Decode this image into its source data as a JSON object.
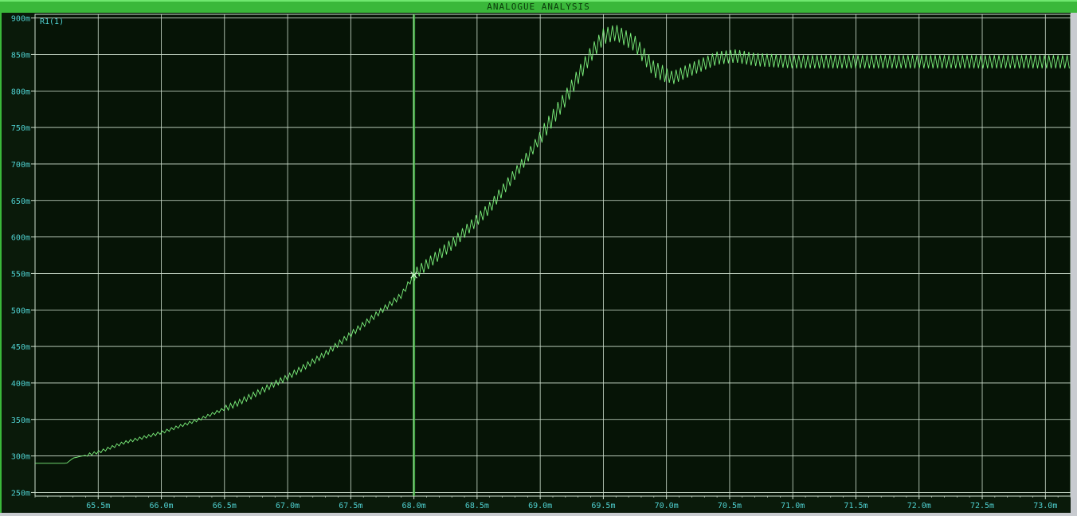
{
  "window": {
    "title": "ANALOGUE ANALYSIS"
  },
  "chart_data": {
    "type": "line",
    "title": "ANALOGUE ANALYSIS",
    "xlabel": "",
    "ylabel": "",
    "trace_label": "R1(1)",
    "x_ticks": [
      "65.5m",
      "66.0m",
      "66.5m",
      "67.0m",
      "67.5m",
      "68.0m",
      "68.5m",
      "69.0m",
      "69.5m",
      "70.0m",
      "70.5m",
      "71.0m",
      "71.5m",
      "72.0m",
      "72.5m",
      "73.0m"
    ],
    "y_ticks": [
      "900m",
      "850m",
      "800m",
      "750m",
      "700m",
      "650m",
      "600m",
      "550m",
      "500m",
      "450m",
      "400m",
      "350m",
      "300m",
      "250m"
    ],
    "xlim_ms": [
      65.0,
      73.2
    ],
    "ylim_mV": [
      245,
      905
    ],
    "cursor_x_ms": 68.0,
    "series": [
      {
        "color": "#7cf07c",
        "envelope_points_ms_mV": [
          [
            65.0,
            290
          ],
          [
            65.25,
            290
          ],
          [
            65.3,
            297
          ],
          [
            65.5,
            305
          ],
          [
            65.7,
            318
          ],
          [
            66.0,
            332
          ],
          [
            66.3,
            350
          ],
          [
            66.6,
            372
          ],
          [
            67.0,
            408
          ],
          [
            67.3,
            440
          ],
          [
            67.6,
            480
          ],
          [
            67.9,
            520
          ],
          [
            68.0,
            548
          ],
          [
            68.3,
            590
          ],
          [
            68.6,
            640
          ],
          [
            68.9,
            710
          ],
          [
            69.2,
            790
          ],
          [
            69.4,
            850
          ],
          [
            69.5,
            875
          ],
          [
            69.6,
            880
          ],
          [
            69.75,
            865
          ],
          [
            69.9,
            830
          ],
          [
            70.05,
            818
          ],
          [
            70.2,
            830
          ],
          [
            70.4,
            845
          ],
          [
            70.55,
            848
          ],
          [
            70.7,
            843
          ],
          [
            71.0,
            840
          ],
          [
            71.5,
            840
          ],
          [
            72.0,
            840
          ],
          [
            72.5,
            840
          ],
          [
            73.0,
            840
          ],
          [
            73.2,
            840
          ]
        ],
        "ripple_start_ms": 65.4
      }
    ],
    "grid": true,
    "legend": "top-left"
  }
}
